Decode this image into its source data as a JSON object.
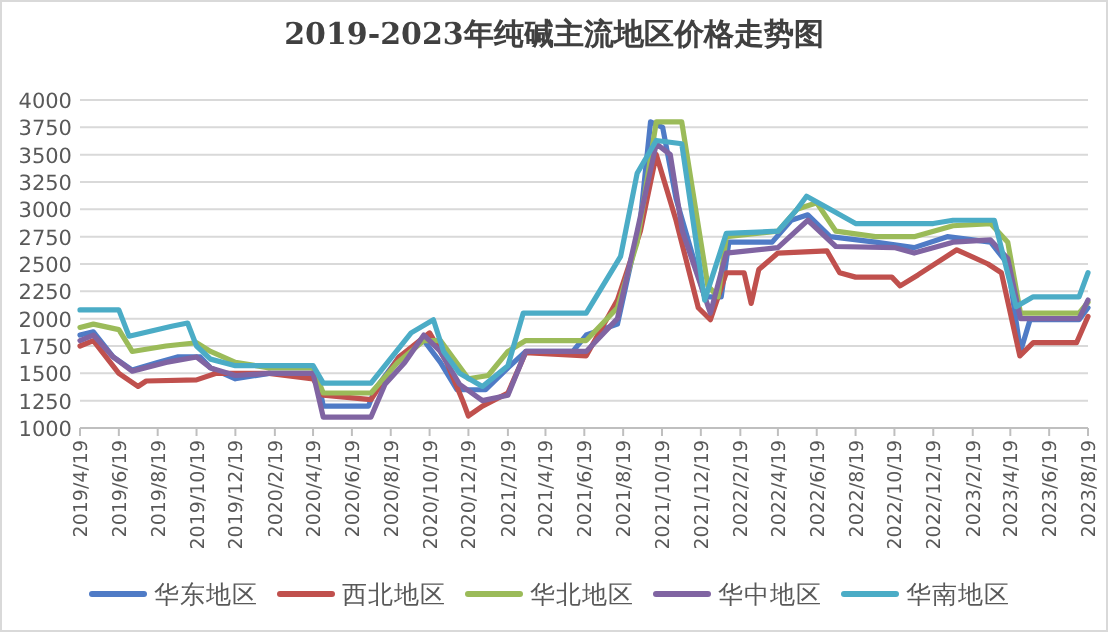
{
  "chart_data": {
    "type": "line",
    "title": "2019-2023年纯碱主流地区价格走势图",
    "xlim": [
      "2019-04-19",
      "2023-08-19"
    ],
    "xticks": [
      {
        "value": "2019-04-19",
        "label": "2019/4/19"
      },
      {
        "value": "2019-06-19",
        "label": "2019/6/19"
      },
      {
        "value": "2019-08-19",
        "label": "2019/8/19"
      },
      {
        "value": "2019-10-19",
        "label": "2019/10/19"
      },
      {
        "value": "2019-12-19",
        "label": "2019/12/19"
      },
      {
        "value": "2020-02-19",
        "label": "2020/2/19"
      },
      {
        "value": "2020-04-19",
        "label": "2020/4/19"
      },
      {
        "value": "2020-06-19",
        "label": "2020/6/19"
      },
      {
        "value": "2020-08-19",
        "label": "2020/8/19"
      },
      {
        "value": "2020-10-19",
        "label": "2020/10/19"
      },
      {
        "value": "2020-12-19",
        "label": "2020/12/19"
      },
      {
        "value": "2021-02-19",
        "label": "2021/2/19"
      },
      {
        "value": "2021-04-19",
        "label": "2021/4/19"
      },
      {
        "value": "2021-06-19",
        "label": "2021/6/19"
      },
      {
        "value": "2021-08-19",
        "label": "2021/8/19"
      },
      {
        "value": "2021-10-19",
        "label": "2021/10/19"
      },
      {
        "value": "2021-12-19",
        "label": "2021/12/19"
      },
      {
        "value": "2022-02-19",
        "label": "2022/2/19"
      },
      {
        "value": "2022-04-19",
        "label": "2022/4/19"
      },
      {
        "value": "2022-06-19",
        "label": "2022/6/19"
      },
      {
        "value": "2022-08-19",
        "label": "2022/8/19"
      },
      {
        "value": "2022-10-19",
        "label": "2022/10/19"
      },
      {
        "value": "2022-12-19",
        "label": "2022/12/19"
      },
      {
        "value": "2023-02-19",
        "label": "2023/2/19"
      },
      {
        "value": "2023-04-19",
        "label": "2023/4/19"
      },
      {
        "value": "2023-06-19",
        "label": "2023/6/19"
      },
      {
        "value": "2023-08-19",
        "label": "2023/8/19"
      }
    ],
    "ylim": [
      1000,
      4000
    ],
    "yticks": [
      1000,
      1250,
      1500,
      1750,
      2000,
      2250,
      2500,
      2750,
      3000,
      3250,
      3500,
      3750,
      4000
    ],
    "grid": "y",
    "legend": "bottom",
    "marker": "none",
    "line_style": "solid",
    "series": [
      {
        "name": "华东地区",
        "color": "#4f7bc6",
        "x": [
          "2019-04-19",
          "2019-05-10",
          "2019-06-10",
          "2019-07-10",
          "2019-08-19",
          "2019-09-19",
          "2019-10-25",
          "2019-11-10",
          "2019-12-19",
          "2020-02-10",
          "2020-04-25",
          "2020-05-05",
          "2020-07-15",
          "2020-07-25",
          "2020-09-01",
          "2020-10-10",
          "2020-11-05",
          "2020-12-01",
          "2021-01-15",
          "2021-02-19",
          "2021-03-19",
          "2021-06-01",
          "2021-06-22",
          "2021-08-10",
          "2021-09-15",
          "2021-10-01",
          "2021-10-20",
          "2021-11-10",
          "2021-12-25",
          "2022-01-20",
          "2022-02-01",
          "2022-04-10",
          "2022-05-10",
          "2022-06-05",
          "2022-07-10",
          "2022-09-19",
          "2022-11-19",
          "2023-01-10",
          "2023-03-19",
          "2023-04-15",
          "2023-05-05",
          "2023-05-20",
          "2023-08-05",
          "2023-08-19"
        ],
        "values": [
          1850,
          1880,
          1650,
          1530,
          1600,
          1650,
          1650,
          1550,
          1450,
          1500,
          1500,
          1200,
          1200,
          1350,
          1650,
          1800,
          1600,
          1350,
          1350,
          1550,
          1700,
          1700,
          1850,
          1950,
          2900,
          3800,
          3750,
          3100,
          2200,
          2200,
          2700,
          2700,
          2900,
          2950,
          2750,
          2700,
          2650,
          2750,
          2700,
          2500,
          1700,
          1990,
          1990,
          2100
        ]
      },
      {
        "name": "西北地区",
        "color": "#c0504d",
        "x": [
          "2019-04-19",
          "2019-05-10",
          "2019-06-19",
          "2019-07-19",
          "2019-08-01",
          "2019-10-19",
          "2019-11-19",
          "2020-02-10",
          "2020-04-19",
          "2020-05-05",
          "2020-07-19",
          "2020-09-01",
          "2020-10-19",
          "2020-11-15",
          "2020-12-10",
          "2020-12-19",
          "2021-01-10",
          "2021-02-19",
          "2021-03-19",
          "2021-06-22",
          "2021-08-10",
          "2021-09-15",
          "2021-10-10",
          "2021-11-10",
          "2021-12-15",
          "2022-01-03",
          "2022-01-28",
          "2022-02-25",
          "2022-03-08",
          "2022-03-20",
          "2022-04-19",
          "2022-07-05",
          "2022-07-25",
          "2022-08-19",
          "2022-10-15",
          "2022-10-28",
          "2022-11-25",
          "2023-01-25",
          "2023-03-15",
          "2023-04-05",
          "2023-05-04",
          "2023-05-25",
          "2023-08-01",
          "2023-08-19"
        ],
        "values": [
          1750,
          1800,
          1500,
          1380,
          1430,
          1440,
          1500,
          1500,
          1450,
          1300,
          1260,
          1650,
          1870,
          1600,
          1250,
          1110,
          1200,
          1320,
          1690,
          1660,
          2170,
          2800,
          3500,
          2900,
          2100,
          1990,
          2420,
          2420,
          2140,
          2450,
          2600,
          2620,
          2420,
          2380,
          2380,
          2300,
          2400,
          2630,
          2500,
          2420,
          1660,
          1780,
          1780,
          2020
        ]
      },
      {
        "name": "华北地区",
        "color": "#9bbb59",
        "x": [
          "2019-04-19",
          "2019-05-10",
          "2019-06-19",
          "2019-07-10",
          "2019-09-01",
          "2019-10-19",
          "2019-11-10",
          "2019-12-19",
          "2020-02-10",
          "2020-04-19",
          "2020-05-05",
          "2020-07-19",
          "2020-08-30",
          "2020-10-10",
          "2020-11-05",
          "2020-12-19",
          "2021-01-19",
          "2021-02-19",
          "2021-03-19",
          "2021-06-22",
          "2021-08-10",
          "2021-09-10",
          "2021-10-10",
          "2021-11-19",
          "2021-12-30",
          "2022-01-15",
          "2022-01-28",
          "2022-04-19",
          "2022-05-19",
          "2022-06-19",
          "2022-07-19",
          "2022-09-19",
          "2022-11-19",
          "2023-01-19",
          "2023-03-19",
          "2023-04-15",
          "2023-05-05",
          "2023-08-05",
          "2023-08-19"
        ],
        "values": [
          1920,
          1950,
          1900,
          1700,
          1750,
          1780,
          1700,
          1600,
          1550,
          1550,
          1320,
          1320,
          1600,
          1800,
          1800,
          1450,
          1480,
          1700,
          1800,
          1800,
          2100,
          2700,
          3800,
          3800,
          2300,
          2200,
          2750,
          2800,
          3000,
          3060,
          2800,
          2750,
          2750,
          2850,
          2870,
          2700,
          2050,
          2050,
          2150
        ]
      },
      {
        "name": "华中地区",
        "color": "#8064a2",
        "x": [
          "2019-04-19",
          "2019-05-10",
          "2019-06-10",
          "2019-07-10",
          "2019-09-01",
          "2019-10-19",
          "2019-11-10",
          "2019-12-19",
          "2020-02-10",
          "2020-04-19",
          "2020-05-05",
          "2020-07-19",
          "2020-08-10",
          "2020-09-10",
          "2020-10-10",
          "2020-11-05",
          "2020-12-05",
          "2021-01-10",
          "2021-02-19",
          "2021-03-19",
          "2021-06-22",
          "2021-08-10",
          "2021-09-10",
          "2021-10-10",
          "2021-11-01",
          "2021-11-20",
          "2022-01-03",
          "2022-01-28",
          "2022-04-19",
          "2022-06-05",
          "2022-07-19",
          "2022-10-19",
          "2022-11-19",
          "2023-01-19",
          "2023-03-19",
          "2023-04-15",
          "2023-05-05",
          "2023-08-05",
          "2023-08-19"
        ],
        "values": [
          1800,
          1850,
          1650,
          1520,
          1600,
          1650,
          1550,
          1480,
          1500,
          1500,
          1100,
          1100,
          1400,
          1600,
          1850,
          1700,
          1400,
          1250,
          1300,
          1700,
          1700,
          2000,
          2800,
          3600,
          3500,
          2800,
          2050,
          2600,
          2650,
          2900,
          2660,
          2650,
          2600,
          2700,
          2720,
          2550,
          2000,
          2000,
          2170
        ]
      },
      {
        "name": "华南地区",
        "color": "#4bacc6",
        "x": [
          "2019-04-19",
          "2019-06-19",
          "2019-07-05",
          "2019-09-10",
          "2019-10-05",
          "2019-10-19",
          "2019-11-10",
          "2019-12-19",
          "2020-04-19",
          "2020-05-05",
          "2020-07-19",
          "2020-09-20",
          "2020-10-25",
          "2020-11-10",
          "2020-12-05",
          "2021-01-10",
          "2021-02-19",
          "2021-03-15",
          "2021-06-22",
          "2021-08-15",
          "2021-09-10",
          "2021-10-10",
          "2021-11-19",
          "2021-12-25",
          "2022-01-28",
          "2022-04-19",
          "2022-05-19",
          "2022-06-03",
          "2022-07-10",
          "2022-08-19",
          "2022-12-19",
          "2023-01-19",
          "2023-03-25",
          "2023-04-28",
          "2023-05-25",
          "2023-08-05",
          "2023-08-19"
        ],
        "values": [
          2080,
          2080,
          1840,
          1930,
          1960,
          1750,
          1630,
          1570,
          1570,
          1410,
          1410,
          1870,
          1990,
          1700,
          1500,
          1380,
          1570,
          2050,
          2050,
          2570,
          3330,
          3630,
          3600,
          2170,
          2780,
          2800,
          3000,
          3120,
          3000,
          2870,
          2870,
          2900,
          2900,
          2110,
          2200,
          2200,
          2420
        ]
      }
    ]
  }
}
